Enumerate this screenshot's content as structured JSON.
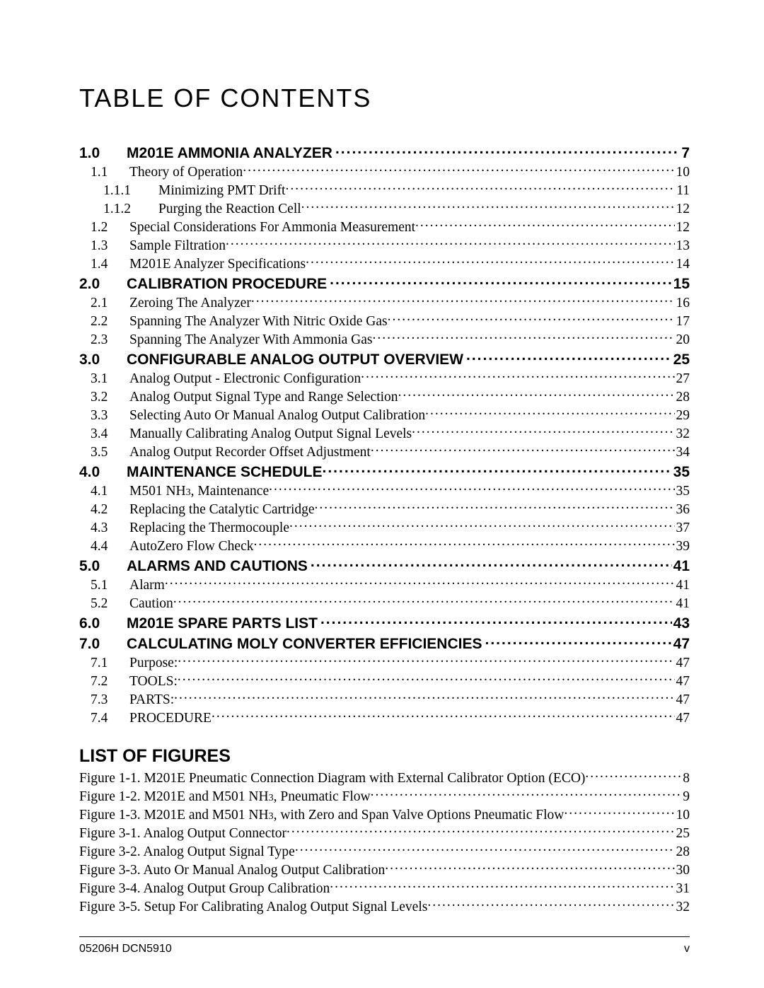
{
  "title": "TABLE OF CONTENTS",
  "sections": [
    {
      "level": 1,
      "num": "1.0",
      "text": "M201E AMMONIA ANALYZER",
      "sep": " ",
      "page": "7"
    },
    {
      "level": 2,
      "num": "1.1",
      "text": "Theory of Operation",
      "page": "10"
    },
    {
      "level": 3,
      "num": "1.1.1",
      "text": "Minimizing PMT Drift",
      "page": "11"
    },
    {
      "level": 3,
      "num": "1.1.2",
      "text": "Purging the Reaction Cell",
      "page": "12"
    },
    {
      "level": 2,
      "num": "1.2",
      "text": "Special Considerations For Ammonia Measurement",
      "sep": " ",
      "page": "12"
    },
    {
      "level": 2,
      "num": "1.3",
      "text": "Sample Filtration",
      "page": "13"
    },
    {
      "level": 2,
      "num": "1.4",
      "text": "M201E Analyzer Specifications",
      "sep": " ",
      "page": "14"
    },
    {
      "level": 1,
      "num": "2.0",
      "text": "CALIBRATION PROCEDURE",
      "sep": " ",
      "page": "15"
    },
    {
      "level": 2,
      "num": "2.1",
      "text": "Zeroing The Analyzer",
      "page": "16"
    },
    {
      "level": 2,
      "num": "2.2",
      "text": "Spanning The Analyzer With Nitric Oxide Gas",
      "sep": " ",
      "page": "17"
    },
    {
      "level": 2,
      "num": "2.3",
      "text": "Spanning The Analyzer With Ammonia Gas",
      "sep": " ",
      "page": "20"
    },
    {
      "level": 1,
      "num": "3.0",
      "text": "CONFIGURABLE ANALOG OUTPUT OVERVIEW",
      "sep": " ",
      "page": "25"
    },
    {
      "level": 2,
      "num": "3.1",
      "text": "Analog Output - Electronic Configuration",
      "sep": " ",
      "page": "27"
    },
    {
      "level": 2,
      "num": "3.2",
      "text": "Analog Output Signal Type and Range Selection",
      "sep": " ",
      "page": "28"
    },
    {
      "level": 2,
      "num": "3.3",
      "text": "Selecting Auto Or Manual Analog Output Calibration",
      "sep": " ",
      "page": "29"
    },
    {
      "level": 2,
      "num": "3.4",
      "text": "Manually Calibrating Analog Output Signal Levels",
      "sep": " ",
      "page": "32"
    },
    {
      "level": 2,
      "num": "3.5",
      "text": "Analog Output Recorder Offset Adjustment",
      "sep": " ",
      "page": "34"
    },
    {
      "level": 1,
      "num": "4.0",
      "text": "MAINTENANCE SCHEDULE",
      "page": "35"
    },
    {
      "level": 2,
      "num": "4.1",
      "text": "M501 NH",
      "sub": "3",
      "text2": ", Maintenance",
      "sep": " ",
      "page": "35"
    },
    {
      "level": 2,
      "num": "4.2",
      "text": "Replacing the Catalytic Cartridge",
      "page": "36"
    },
    {
      "level": 2,
      "num": "4.3",
      "text": "Replacing the Thermocouple",
      "page": "37"
    },
    {
      "level": 2,
      "num": "4.4",
      "text": "AutoZero Flow Check",
      "page": "39"
    },
    {
      "level": 1,
      "num": "5.0",
      "text": "ALARMS AND CAUTIONS",
      "sep": " ",
      "page": "41"
    },
    {
      "level": 2,
      "num": "5.1",
      "text": "Alarm",
      "sep": " ",
      "page": "41"
    },
    {
      "level": 2,
      "num": "5.2",
      "text": "Caution",
      "page": "41"
    },
    {
      "level": 1,
      "num": "6.0",
      "text": "M201E SPARE PARTS LIST",
      "sep": " ",
      "page": "43"
    },
    {
      "level": 1,
      "num": "7.0",
      "text": "CALCULATING MOLY CONVERTER EFFICIENCIES",
      "sep": " ",
      "page": "47"
    },
    {
      "level": 2,
      "num": "7.1",
      "text": "Purpose:",
      "page": "47"
    },
    {
      "level": 2,
      "num": "7.2",
      "text": "TOOLS:",
      "page": "47"
    },
    {
      "level": 2,
      "num": "7.3",
      "text": "PARTS:",
      "sep": " ",
      "page": "47"
    },
    {
      "level": 2,
      "num": "7.4",
      "text": "PROCEDURE",
      "page": "47"
    }
  ],
  "figures_title": "LIST OF FIGURES",
  "figures": [
    {
      "text": "Figure 1-1. M201E Pneumatic Connection Diagram with External Calibrator Option (ECO)",
      "page": "8"
    },
    {
      "text": "Figure 1-2. M201E and M501 NH",
      "sub": "3",
      "text2": ", Pneumatic Flow",
      "sep": " ",
      "page": "9"
    },
    {
      "text": "Figure 1-3. M201E and M501 NH",
      "sub": "3",
      "text2": ", with Zero and Span Valve Options Pneumatic Flow",
      "page": "10"
    },
    {
      "text": "Figure 3-1. Analog Output Connector",
      "sep": " ",
      "page": "25"
    },
    {
      "text": "Figure 3-2. Analog Output Signal Type",
      "sep": " ",
      "page": "28"
    },
    {
      "text": "Figure 3-3. Auto Or Manual Analog Output Calibration",
      "sep": " ",
      "page": "30"
    },
    {
      "text": "Figure 3-4. Analog Output Group Calibration",
      "page": "31"
    },
    {
      "text": "Figure 3-5. Setup For Calibrating Analog Output Signal Levels",
      "sep": " ",
      "page": "32"
    }
  ],
  "footer_left": "05206H DCN5910",
  "footer_right": "v",
  "colors": {
    "text": "#000000",
    "background": "#ffffff",
    "rule": "#000000"
  }
}
